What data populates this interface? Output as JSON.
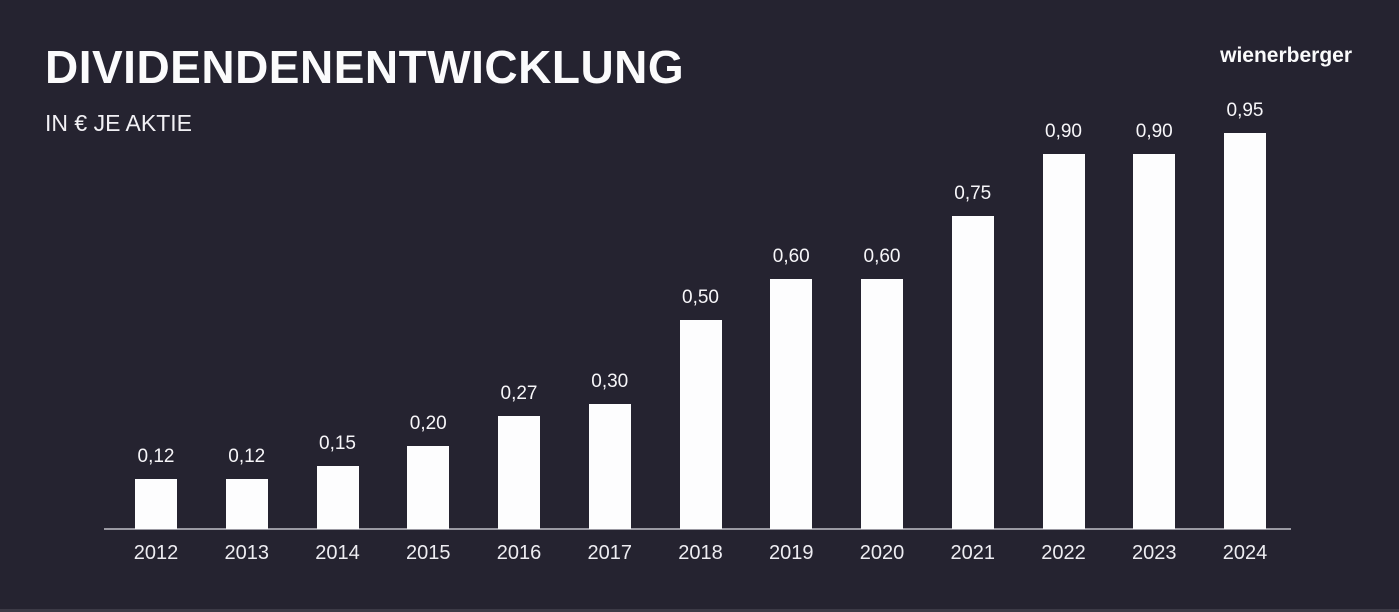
{
  "header": {
    "title": "DIVIDENDENENTWICKLUNG",
    "subtitle": "IN € JE AKTIE",
    "logo": "wienerberger"
  },
  "colors": {
    "background": "#252330",
    "bar": "#fdfdfe",
    "axis": "#9a99a2",
    "text": "#f5f4f7"
  },
  "chart_data": {
    "type": "bar",
    "title": "DIVIDENDENENTWICKLUNG",
    "subtitle": "IN € JE AKTIE",
    "unit": "EUR je Aktie",
    "categories": [
      "2012",
      "2013",
      "2014",
      "2015",
      "2016",
      "2017",
      "2018",
      "2019",
      "2020",
      "2021",
      "2022",
      "2023",
      "2024"
    ],
    "values": [
      0.12,
      0.12,
      0.15,
      0.2,
      0.27,
      0.3,
      0.5,
      0.6,
      0.6,
      0.75,
      0.9,
      0.9,
      0.95
    ],
    "value_labels": [
      "0,12",
      "0,12",
      "0,15",
      "0,20",
      "0,27",
      "0,30",
      "0,50",
      "0,60",
      "0,60",
      "0,75",
      "0,90",
      "0,90",
      "0,95"
    ],
    "xlabel": "",
    "ylabel": "",
    "ylim": [
      0,
      1.0
    ],
    "grid": false,
    "legend": false,
    "bar_color": "#ffffff",
    "background_color": "#252330"
  }
}
